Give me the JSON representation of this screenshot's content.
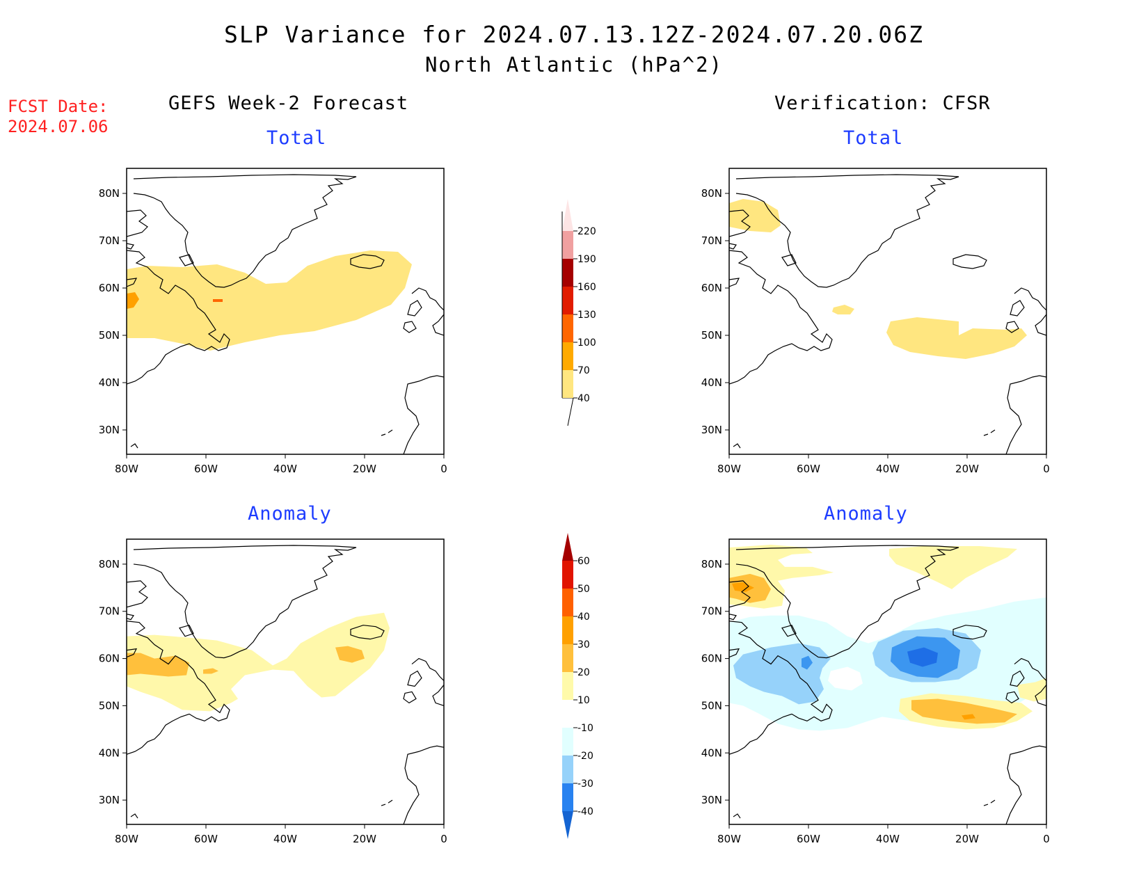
{
  "title": {
    "line1": "SLP Variance for 2024.07.13.12Z-2024.07.20.06Z",
    "line2": "North Atlantic (hPa^2)"
  },
  "fcst_date": {
    "label": "FCST Date:",
    "value": "2024.07.06"
  },
  "columns": {
    "left": "GEFS Week-2 Forecast",
    "right": "Verification: CFSR"
  },
  "panel_labels": {
    "top": "Total",
    "bottom": "Anomaly"
  },
  "axes": {
    "lon_ticks": [
      "80W",
      "60W",
      "40W",
      "20W",
      "0"
    ],
    "lat_ticks": [
      "80N",
      "70N",
      "60N",
      "50N",
      "40N",
      "30N"
    ]
  },
  "colorbars": {
    "total": {
      "levels": [
        "40",
        "70",
        "100",
        "130",
        "160",
        "190",
        "220"
      ],
      "colors": [
        "#ffe680",
        "#ffaa00",
        "#ff6600",
        "#e11c00",
        "#a50000",
        "#f0a0a0",
        "#fde5e5"
      ]
    },
    "anomaly": {
      "levels": [
        "-40",
        "-30",
        "-20",
        "-10",
        "10",
        "20",
        "30",
        "40",
        "50",
        "60"
      ],
      "colors": [
        "#1464d2",
        "#2882f0",
        "#96d2fa",
        "#e1ffff",
        "#ffffff",
        "#fffaaa",
        "#ffc03c",
        "#ffa000",
        "#ff6000",
        "#e11400",
        "#a50000"
      ]
    }
  },
  "palette": {
    "yellow_light": "#fff8aa",
    "yellow": "#ffe680",
    "orange_light": "#ffc03c",
    "orange": "#ffa000",
    "orange_dark": "#ff6600",
    "cyan_light": "#e1ffff",
    "blue_light": "#96d2fa",
    "blue": "#3c96f0",
    "blue_dark": "#1e6ee6",
    "title_blue": "#1d3cff",
    "fcst_red": "#ff2020"
  }
}
